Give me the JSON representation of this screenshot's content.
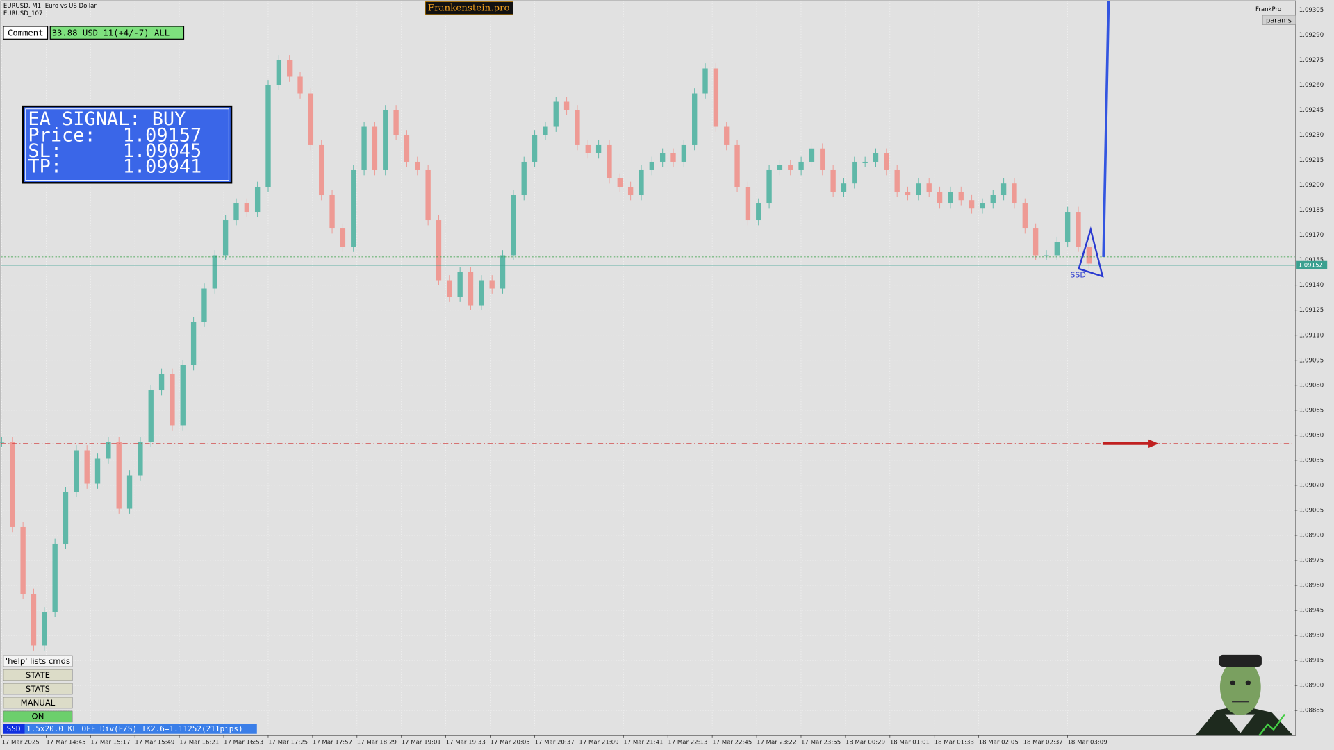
{
  "header": {
    "symbol": "EURUSD, M1:  Euro vs US Dollar",
    "account": "EURUSD_107",
    "brand": "Frankenstein.pro",
    "frankpro": "FrankPro",
    "params": "params"
  },
  "comment": {
    "button": "Comment",
    "text": "33.88 USD 11(+4/-7) ALL"
  },
  "ea_signal": {
    "title": "EA SIGNAL: BUY",
    "rows": [
      {
        "label": "Price:",
        "value": 1.09157
      },
      {
        "label": "SL:",
        "value": 1.09045
      },
      {
        "label": "TP:",
        "value": 1.09941
      }
    ]
  },
  "buttons": [
    "'help' lists cmds",
    "STATE",
    "STATS",
    "MANUAL",
    "ON"
  ],
  "status": {
    "tag": "SSD",
    "text": "1.5x20.0 KL_OFF Div(F/S) TK2.6=1.11252(211pips)"
  },
  "pattern_label": "SSD",
  "price_tag": 1.09152,
  "chart_data": {
    "type": "candlestick",
    "up_color": "#5fb8a8",
    "down_color": "#ee9a94",
    "ylim": [
      1.0887,
      1.09311
    ],
    "yticks": [
      1.09305,
      {
        "value": 1.0929,
        "label": "1.09290"
      },
      1.09275,
      {
        "value": 1.0926,
        "label": "1.09260"
      },
      1.09245,
      {
        "value": 1.0923,
        "label": "1.09230"
      },
      1.09215,
      {
        "value": 1.092,
        "label": "1.09200"
      },
      1.09185,
      {
        "value": 1.0917,
        "label": "1.09170"
      },
      1.09155,
      {
        "value": 1.0914,
        "label": "1.09140"
      },
      1.09125,
      {
        "value": 1.0911,
        "label": "1.09110"
      },
      1.09095,
      {
        "value": 1.0908,
        "label": "1.09080"
      },
      1.09065,
      {
        "value": 1.0905,
        "label": "1.09050"
      },
      1.09035,
      {
        "value": 1.0902,
        "label": "1.09020"
      },
      1.09005,
      {
        "value": 1.0899,
        "label": "1.08990"
      },
      1.08975,
      {
        "value": 1.0896,
        "label": "1.08960"
      },
      1.08945,
      {
        "value": 1.0893,
        "label": "1.08930"
      },
      1.08915,
      {
        "value": 1.089,
        "label": "1.08900"
      },
      1.08885
    ],
    "time_labels": [
      "17 Mar 2025",
      "17 Mar 14:45",
      "17 Mar 15:17",
      "17 Mar 15:49",
      "17 Mar 16:21",
      "17 Mar 16:53",
      "17 Mar 17:25",
      "17 Mar 17:57",
      "17 Mar 18:29",
      "17 Mar 19:01",
      "17 Mar 19:33",
      "17 Mar 20:05",
      "17 Mar 20:37",
      "17 Mar 21:09",
      "17 Mar 21:41",
      "17 Mar 22:13",
      "17 Mar 22:45",
      "17 Mar 23:22",
      "17 Mar 23:55",
      "18 Mar 00:29",
      "18 Mar 01:01",
      "18 Mar 01:33",
      "18 Mar 02:05",
      "18 Mar 02:37",
      "18 Mar 03:09"
    ],
    "values": [
      1.09046,
      1.08995,
      1.08955,
      1.08924,
      1.08944,
      1.08985,
      1.09016,
      1.09041,
      1.09021,
      1.09036,
      1.09046,
      1.09006,
      1.09026,
      1.09046,
      1.09077,
      1.09087,
      1.09056,
      1.09092,
      1.09118,
      1.09138,
      1.09158,
      1.09179,
      1.09189,
      1.09184,
      1.09199,
      1.0926,
      1.09275,
      1.09265,
      1.09255,
      1.09224,
      1.09194,
      1.09174,
      1.09163,
      1.09209,
      1.09235,
      1.09209,
      1.09245,
      1.0923,
      1.09214,
      1.09209,
      1.09179,
      1.09143,
      1.09133,
      1.09148,
      1.09128,
      1.09143,
      1.09138,
      1.09158,
      1.09194,
      1.09214,
      1.0923,
      1.09235,
      1.0925,
      1.09245,
      1.09224,
      1.09219,
      1.09224,
      1.09204,
      1.09199,
      1.09194,
      1.09209,
      1.09214,
      1.09219,
      1.09214,
      1.09224,
      1.09255,
      1.0927,
      1.09235,
      1.09224,
      1.09199,
      1.09179,
      1.09189,
      1.09209,
      1.09212,
      1.09209,
      1.09214,
      1.09222,
      1.09209,
      1.09196,
      1.09201,
      1.09214,
      1.09214,
      1.09219,
      1.09209,
      1.09196,
      1.09194,
      1.09201,
      1.09196,
      1.09189,
      1.09196,
      1.09191,
      1.09186,
      1.09189,
      1.09194,
      1.09201,
      1.09189,
      1.09174,
      1.09158,
      1.09158,
      1.09166,
      1.09184,
      1.09163,
      1.09153
    ]
  }
}
